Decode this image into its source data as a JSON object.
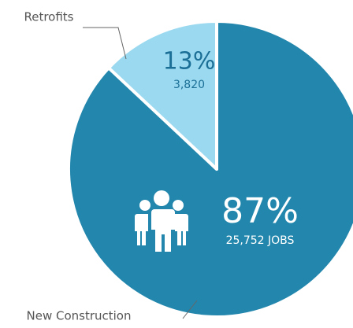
{
  "chart_data": {
    "type": "pie",
    "categories": [
      "New Construction",
      "Retrofits"
    ],
    "values": [
      87,
      13
    ],
    "value_labels": [
      "87%",
      "13%"
    ],
    "jobs": [
      25752,
      3820
    ],
    "jobs_labels": [
      "25,752 JOBS",
      "3,820"
    ],
    "colors": [
      "#2387ad",
      "#9ad9f0"
    ]
  }
}
